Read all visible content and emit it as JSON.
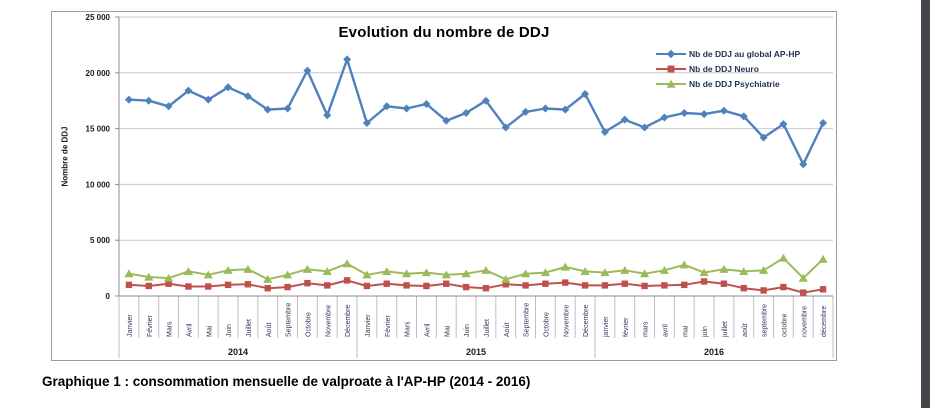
{
  "page": {
    "caption": "Graphique 1 : consommation mensuelle de valproate à l'AP-HP (2014 - 2016)"
  },
  "chart_data": {
    "type": "line",
    "title": "Evolution du nombre de DDJ",
    "xlabel": "",
    "ylabel": "Nombre de DDJ",
    "ylim": [
      0,
      25000
    ],
    "yticks": [
      0,
      5000,
      10000,
      15000,
      20000,
      25000
    ],
    "ytick_labels": [
      "0",
      "5 000",
      "10 000",
      "15 000",
      "20 000",
      "25 000"
    ],
    "grid": "horizontal",
    "legend_position": "top-right",
    "colors": {
      "grid": "#c9c9c9",
      "axis": "#8c8c8c",
      "separator": "#bfbfbf",
      "month_text": "#2b3a55",
      "tick_text": "#1a1a1a"
    },
    "years": [
      {
        "label": "2014",
        "months": [
          "Janvier",
          "Février",
          "Mars",
          "Avril",
          "Mai",
          "Juin",
          "Juillet",
          "Août",
          "Septembre",
          "Octobre",
          "Novembre",
          "Décembre"
        ]
      },
      {
        "label": "2015",
        "months": [
          "Janvier",
          "Février",
          "Mars",
          "Avril",
          "Mai",
          "Juin",
          "Juillet",
          "Août",
          "Septembre",
          "Octobre",
          "Novembre",
          "Décembre"
        ]
      },
      {
        "label": "2016",
        "months": [
          "janvier",
          "février",
          "mars",
          "avril",
          "mai",
          "juin",
          "juillet",
          "août",
          "septembre",
          "octobre",
          "novembre",
          "décembre"
        ]
      }
    ],
    "series": [
      {
        "id": "global-aphp",
        "name": "Nb de DDJ au global AP-HP",
        "color": "#4F81BD",
        "marker": "diamond",
        "values": [
          17600,
          17500,
          17000,
          18400,
          17600,
          18700,
          17900,
          16700,
          16800,
          20200,
          16200,
          21200,
          15500,
          17000,
          16800,
          17200,
          15700,
          16400,
          17500,
          15100,
          16500,
          16800,
          16700,
          18100,
          14700,
          15800,
          15100,
          16000,
          16400,
          16300,
          16600,
          16100,
          14200,
          15400,
          11800,
          15500
        ]
      },
      {
        "id": "neuro",
        "name": "Nb de DDJ Neuro",
        "color": "#C0504D",
        "marker": "square",
        "values": [
          1000,
          900,
          1100,
          850,
          850,
          1000,
          1050,
          700,
          800,
          1150,
          950,
          1400,
          900,
          1100,
          950,
          900,
          1100,
          800,
          700,
          1050,
          950,
          1100,
          1200,
          950,
          950,
          1100,
          900,
          950,
          1000,
          1300,
          1100,
          700,
          500,
          800,
          300,
          600
        ]
      },
      {
        "id": "psychiatrie",
        "name": "Nb de DDJ Psychiatrie",
        "color": "#9BBB59",
        "marker": "triangle",
        "values": [
          2000,
          1700,
          1600,
          2200,
          1900,
          2300,
          2400,
          1500,
          1900,
          2400,
          2200,
          2900,
          1900,
          2200,
          2000,
          2100,
          1900,
          2000,
          2300,
          1500,
          2000,
          2100,
          2600,
          2200,
          2100,
          2300,
          2000,
          2300,
          2800,
          2100,
          2400,
          2200,
          2300,
          3400,
          1600,
          3300
        ]
      }
    ]
  }
}
